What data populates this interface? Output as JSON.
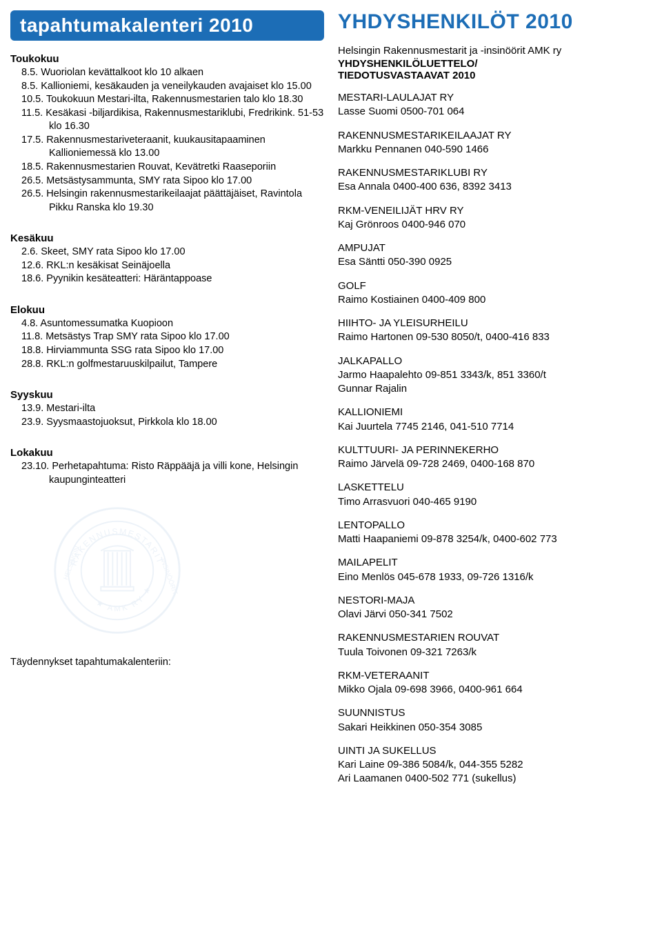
{
  "colors": {
    "blue": "#1c6db6",
    "text": "#000000",
    "bg": "#ffffff",
    "seal": "#b8cde6"
  },
  "left": {
    "header": "tapahtumakalenteri 2010",
    "months": [
      {
        "name": "Toukokuu",
        "events": [
          {
            "d": "8.5.",
            "t": "Wuoriolan kevättalkoot klo 10 alkaen"
          },
          {
            "d": "8.5.",
            "t": "Kallioniemi, kesäkauden ja veneilykauden avajaiset klo 15.00"
          },
          {
            "d": "10.5.",
            "t": "Toukokuun Mestari-ilta, Rakennusmestarien talo klo 18.30"
          },
          {
            "d": "11.5.",
            "t": "Kesäkasi -biljardikisa, Rakennusmestariklubi, Fredrikink. 51-53 klo 16.30"
          },
          {
            "d": "17.5.",
            "t": "Rakennusmestariveteraanit, kuukausitapaaminen Kallioniemessä klo 13.00"
          },
          {
            "d": "18.5.",
            "t": "Rakennusmestarien Rouvat, Kevätretki Raaseporiin"
          },
          {
            "d": "26.5.",
            "t": "Metsästysammunta, SMY rata Sipoo klo 17.00"
          },
          {
            "d": "26.5.",
            "t": "Helsingin rakennusmestarikeilaajat päättäjäiset, Ravintola Pikku Ranska klo 19.30"
          }
        ]
      },
      {
        "name": "Kesäkuu",
        "events": [
          {
            "d": "2.6.",
            "t": "Skeet, SMY rata Sipoo klo 17.00"
          },
          {
            "d": "12.6.",
            "t": "RKL:n kesäkisat Seinäjoella"
          },
          {
            "d": "18.6.",
            "t": "Pyynikin kesäteatteri: Häräntappoase"
          }
        ]
      },
      {
        "name": "Elokuu",
        "events": [
          {
            "d": "4.8.",
            "t": "Asuntomessumatka Kuopioon"
          },
          {
            "d": "11.8.",
            "t": "Metsästys Trap SMY rata Sipoo klo 17.00"
          },
          {
            "d": "18.8.",
            "t": "Hirviammunta SSG rata Sipoo klo 17.00"
          },
          {
            "d": "28.8.",
            "t": "RKL:n golfmestaruuskilpailut, Tampere"
          }
        ]
      },
      {
        "name": "Syyskuu",
        "events": [
          {
            "d": "13.9.",
            "t": "Mestari-ilta"
          },
          {
            "d": "23.9.",
            "t": "Syysmaastojuoksut, Pirkkola klo 18.00"
          }
        ]
      },
      {
        "name": "Lokakuu",
        "events": [
          {
            "d": "23.10.",
            "t": "Perhetapahtuma: Risto Räppääjä ja villi kone, Helsingin kaupunginteatteri"
          }
        ]
      }
    ],
    "footer": "Täydennykset tapahtumakalenteriin:"
  },
  "right": {
    "header": "YHDYSHENKILÖT 2010",
    "intro1": "Helsingin Rakennusmestarit ja -insinöörit AMK ry",
    "intro2": "YHDYSHENKILÖLUETTELO/",
    "intro3": "TIEDOTUSVASTAAVAT 2010",
    "contacts": [
      {
        "title": "MESTARI-LAULAJAT RY",
        "lines": [
          "Lasse Suomi   0500-701 064"
        ]
      },
      {
        "title": "RAKENNUSMESTARIKEILAAJAT RY",
        "lines": [
          "Markku Pennanen   040-590 1466"
        ]
      },
      {
        "title": "RAKENNUSMESTARIKLUBI RY",
        "lines": [
          "Esa Annala   0400-400 636, 8392 3413"
        ]
      },
      {
        "title": "RKM-VENEILIJÄT HRV RY",
        "lines": [
          "Kaj Grönroos   0400-946 070"
        ]
      },
      {
        "title": "AMPUJAT",
        "lines": [
          "Esa Säntti   050-390 0925"
        ]
      },
      {
        "title": "GOLF",
        "lines": [
          "Raimo Kostiainen   0400-409 800"
        ]
      },
      {
        "title": "HIIHTO- JA YLEISURHEILU",
        "lines": [
          "Raimo Hartonen   09-530 8050/t, 0400-416 833"
        ]
      },
      {
        "title": "JALKAPALLO",
        "lines": [
          "Jarmo Haapalehto   09-851 3343/k, 851 3360/t",
          "Gunnar Rajalin"
        ]
      },
      {
        "title": "KALLIONIEMI",
        "lines": [
          "Kai Juurtela   7745 2146, 041-510 7714"
        ]
      },
      {
        "title": "KULTTUURI- JA PERINNEKERHO",
        "lines": [
          "Raimo Järvelä   09-728 2469, 0400-168 870"
        ]
      },
      {
        "title": "LASKETTELU",
        "lines": [
          "Timo Arrasvuori   040-465 9190"
        ]
      },
      {
        "title": "LENTOPALLO",
        "lines": [
          "Matti Haapaniemi   09-878 3254/k, 0400-602 773"
        ]
      },
      {
        "title": "MAILAPELIT",
        "lines": [
          "Eino Menlös   045-678 1933, 09-726 1316/k"
        ]
      },
      {
        "title": "NESTORI-MAJA",
        "lines": [
          "Olavi Järvi   050-341 7502"
        ]
      },
      {
        "title": "RAKENNUSMESTARIEN ROUVAT",
        "lines": [
          "Tuula Toivonen   09-321 7263/k"
        ]
      },
      {
        "title": "RKM-VETERAANIT",
        "lines": [
          "Mikko Ojala   09-698 3966, 0400-961 664"
        ]
      },
      {
        "title": "SUUNNISTUS",
        "lines": [
          "Sakari Heikkinen   050-354 3085"
        ]
      },
      {
        "title": "UINTI JA SUKELLUS",
        "lines": [
          "Kari Laine   09-386 5084/k, 044-355 5282",
          "Ari Laamanen   0400-502 771 (sukellus)"
        ]
      }
    ]
  }
}
